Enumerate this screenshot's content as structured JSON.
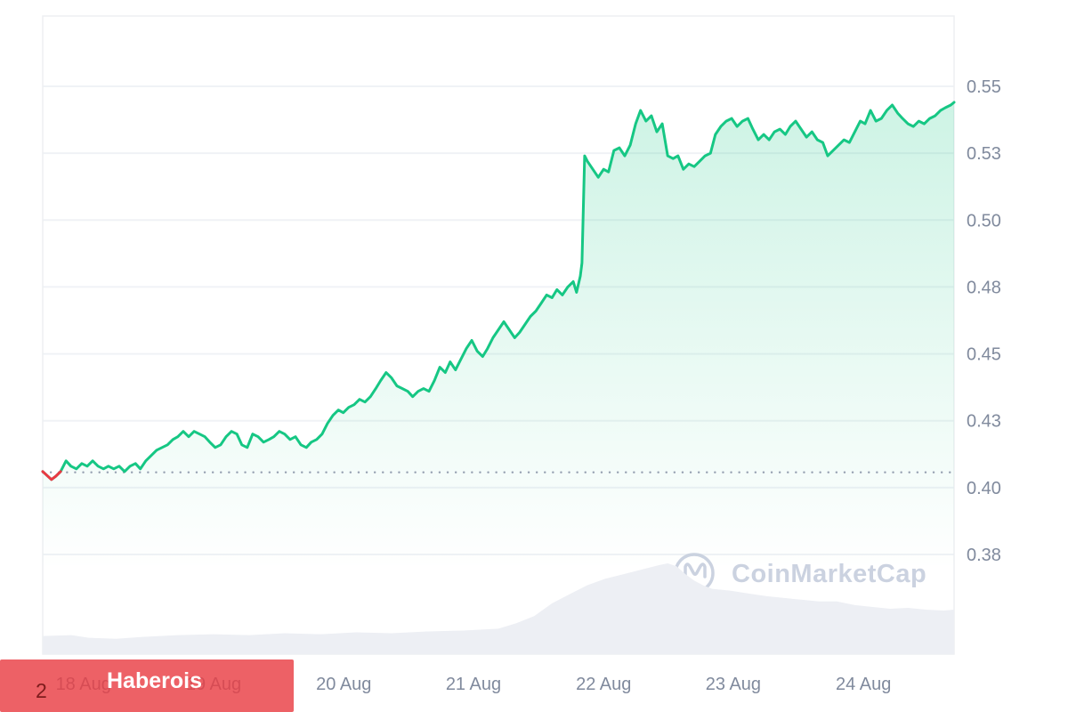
{
  "watermark": {
    "text": "CoinMarketCap",
    "logo_icon": "coinmarketcap-logo",
    "color": "#cbd2e0"
  },
  "overlay": {
    "label": "Haberois",
    "box_color": "rgba(233,62,68,0.82)",
    "label_color": "#ffffff",
    "page_number": "2",
    "page_number_color": "#7d1c1c"
  },
  "chart_data": {
    "type": "line",
    "title": "",
    "xlabel": "",
    "ylabel": "",
    "x_unit": "hours from chart start (7-day window)",
    "y_unit": "price",
    "axis": {
      "x_range_hours": [
        0,
        168
      ],
      "grid": "horizontal-only",
      "y_labels_position": "right"
    },
    "x_ticks": [
      {
        "label": "18 Aug",
        "t": 7.5
      },
      {
        "label": "19 Aug",
        "t": 31.5
      },
      {
        "label": "20 Aug",
        "t": 55.5
      },
      {
        "label": "21 Aug",
        "t": 79.4
      },
      {
        "label": "22 Aug",
        "t": 103.4
      },
      {
        "label": "23 Aug",
        "t": 127.3
      },
      {
        "label": "24 Aug",
        "t": 151.3
      }
    ],
    "y_ticks": [
      {
        "label": "0.55",
        "value": 0.55
      },
      {
        "label": "0.53",
        "value": 0.525
      },
      {
        "label": "0.50",
        "value": 0.5
      },
      {
        "label": "0.48",
        "value": 0.475
      },
      {
        "label": "0.45",
        "value": 0.45
      },
      {
        "label": "0.43",
        "value": 0.425
      },
      {
        "label": "0.40",
        "value": 0.4
      },
      {
        "label": "0.38",
        "value": 0.375
      }
    ],
    "reference_line": 0.4057,
    "series": [
      [
        0,
        0.406
      ],
      [
        0.8,
        0.4045
      ],
      [
        1.6,
        0.403
      ],
      [
        2.4,
        0.4042
      ],
      [
        3.3,
        0.406
      ],
      [
        4.3,
        0.41
      ],
      [
        5.2,
        0.408
      ],
      [
        6.2,
        0.407
      ],
      [
        7.2,
        0.409
      ],
      [
        8.2,
        0.408
      ],
      [
        9.2,
        0.41
      ],
      [
        10.2,
        0.408
      ],
      [
        11.2,
        0.407
      ],
      [
        12.1,
        0.408
      ],
      [
        13.1,
        0.407
      ],
      [
        14.1,
        0.408
      ],
      [
        15.1,
        0.406
      ],
      [
        16.1,
        0.408
      ],
      [
        17.1,
        0.409
      ],
      [
        18,
        0.407
      ],
      [
        19,
        0.41
      ],
      [
        20,
        0.412
      ],
      [
        21,
        0.414
      ],
      [
        22,
        0.415
      ],
      [
        23,
        0.416
      ],
      [
        24,
        0.418
      ],
      [
        24.9,
        0.419
      ],
      [
        25.9,
        0.421
      ],
      [
        26.9,
        0.419
      ],
      [
        27.9,
        0.421
      ],
      [
        28.9,
        0.42
      ],
      [
        29.9,
        0.419
      ],
      [
        30.8,
        0.417
      ],
      [
        31.8,
        0.415
      ],
      [
        32.8,
        0.416
      ],
      [
        33.8,
        0.419
      ],
      [
        34.8,
        0.421
      ],
      [
        35.8,
        0.42
      ],
      [
        36.7,
        0.416
      ],
      [
        37.7,
        0.415
      ],
      [
        38.7,
        0.42
      ],
      [
        39.7,
        0.419
      ],
      [
        40.7,
        0.417
      ],
      [
        41.7,
        0.418
      ],
      [
        42.6,
        0.419
      ],
      [
        43.6,
        0.421
      ],
      [
        44.6,
        0.42
      ],
      [
        45.6,
        0.418
      ],
      [
        46.6,
        0.419
      ],
      [
        47.6,
        0.416
      ],
      [
        48.6,
        0.415
      ],
      [
        49.5,
        0.417
      ],
      [
        50.5,
        0.418
      ],
      [
        51.5,
        0.42
      ],
      [
        52.5,
        0.424
      ],
      [
        53.5,
        0.427
      ],
      [
        54.5,
        0.429
      ],
      [
        55.4,
        0.428
      ],
      [
        56.4,
        0.43
      ],
      [
        57.4,
        0.431
      ],
      [
        58.4,
        0.433
      ],
      [
        59.4,
        0.432
      ],
      [
        60.4,
        0.434
      ],
      [
        61.4,
        0.437
      ],
      [
        62.3,
        0.44
      ],
      [
        63.3,
        0.443
      ],
      [
        64.3,
        0.441
      ],
      [
        65.3,
        0.438
      ],
      [
        66.3,
        0.437
      ],
      [
        67.3,
        0.436
      ],
      [
        68.2,
        0.434
      ],
      [
        69.2,
        0.436
      ],
      [
        70.2,
        0.437
      ],
      [
        71.2,
        0.436
      ],
      [
        72.2,
        0.44
      ],
      [
        73.2,
        0.445
      ],
      [
        74.2,
        0.443
      ],
      [
        75.1,
        0.447
      ],
      [
        76.1,
        0.444
      ],
      [
        77.1,
        0.448
      ],
      [
        78.1,
        0.452
      ],
      [
        79.1,
        0.455
      ],
      [
        80.1,
        0.451
      ],
      [
        81.1,
        0.449
      ],
      [
        82,
        0.452
      ],
      [
        83,
        0.456
      ],
      [
        84,
        0.459
      ],
      [
        85,
        0.462
      ],
      [
        86,
        0.459
      ],
      [
        87,
        0.456
      ],
      [
        87.9,
        0.458
      ],
      [
        88.9,
        0.461
      ],
      [
        89.9,
        0.464
      ],
      [
        90.9,
        0.466
      ],
      [
        91.9,
        0.469
      ],
      [
        92.9,
        0.472
      ],
      [
        93.9,
        0.471
      ],
      [
        94.8,
        0.474
      ],
      [
        95.8,
        0.472
      ],
      [
        96.8,
        0.475
      ],
      [
        97.8,
        0.477
      ],
      [
        98.4,
        0.473
      ],
      [
        99.1,
        0.479
      ],
      [
        99.4,
        0.484
      ],
      [
        99.9,
        0.524
      ],
      [
        100.4,
        0.522
      ],
      [
        101.4,
        0.519
      ],
      [
        102.4,
        0.516
      ],
      [
        103.4,
        0.519
      ],
      [
        104.3,
        0.518
      ],
      [
        105.3,
        0.526
      ],
      [
        106.3,
        0.527
      ],
      [
        107.3,
        0.524
      ],
      [
        108.3,
        0.528
      ],
      [
        109.3,
        0.536
      ],
      [
        110.2,
        0.541
      ],
      [
        111.2,
        0.537
      ],
      [
        112.2,
        0.539
      ],
      [
        113.2,
        0.533
      ],
      [
        114.2,
        0.536
      ],
      [
        115.2,
        0.524
      ],
      [
        116.2,
        0.523
      ],
      [
        117.1,
        0.524
      ],
      [
        118.1,
        0.519
      ],
      [
        119.1,
        0.521
      ],
      [
        120.1,
        0.52
      ],
      [
        121.1,
        0.522
      ],
      [
        122.1,
        0.524
      ],
      [
        123.1,
        0.525
      ],
      [
        124,
        0.532
      ],
      [
        125,
        0.535
      ],
      [
        126,
        0.537
      ],
      [
        127,
        0.538
      ],
      [
        128,
        0.535
      ],
      [
        129,
        0.537
      ],
      [
        130,
        0.538
      ],
      [
        130.9,
        0.534
      ],
      [
        131.9,
        0.53
      ],
      [
        132.9,
        0.532
      ],
      [
        133.9,
        0.53
      ],
      [
        134.9,
        0.533
      ],
      [
        135.9,
        0.534
      ],
      [
        136.9,
        0.532
      ],
      [
        137.8,
        0.535
      ],
      [
        138.8,
        0.537
      ],
      [
        139.8,
        0.534
      ],
      [
        140.8,
        0.531
      ],
      [
        141.8,
        0.533
      ],
      [
        142.8,
        0.53
      ],
      [
        143.8,
        0.529
      ],
      [
        144.7,
        0.524
      ],
      [
        145.7,
        0.526
      ],
      [
        146.7,
        0.528
      ],
      [
        147.7,
        0.53
      ],
      [
        148.7,
        0.529
      ],
      [
        149.7,
        0.533
      ],
      [
        150.7,
        0.537
      ],
      [
        151.6,
        0.536
      ],
      [
        152.6,
        0.541
      ],
      [
        153.6,
        0.537
      ],
      [
        154.6,
        0.538
      ],
      [
        155.6,
        0.541
      ],
      [
        156.6,
        0.543
      ],
      [
        157.6,
        0.54
      ],
      [
        158.5,
        0.538
      ],
      [
        159.5,
        0.536
      ],
      [
        160.5,
        0.535
      ],
      [
        161.5,
        0.537
      ],
      [
        162.5,
        0.536
      ],
      [
        163.5,
        0.538
      ],
      [
        164.5,
        0.539
      ],
      [
        165.5,
        0.541
      ],
      [
        166.4,
        0.542
      ],
      [
        167.4,
        0.543
      ],
      [
        168,
        0.544
      ]
    ],
    "volume_relative": [
      [
        0,
        0.2
      ],
      [
        5.3,
        0.21
      ],
      [
        8.5,
        0.18
      ],
      [
        13.5,
        0.17
      ],
      [
        18.4,
        0.19
      ],
      [
        24.9,
        0.21
      ],
      [
        31.5,
        0.22
      ],
      [
        38.1,
        0.21
      ],
      [
        44.6,
        0.23
      ],
      [
        51.2,
        0.22
      ],
      [
        57.8,
        0.24
      ],
      [
        64.3,
        0.23
      ],
      [
        70.9,
        0.25
      ],
      [
        77.5,
        0.26
      ],
      [
        84,
        0.28
      ],
      [
        87.3,
        0.34
      ],
      [
        90.6,
        0.42
      ],
      [
        93.9,
        0.56
      ],
      [
        97.1,
        0.66
      ],
      [
        100.4,
        0.76
      ],
      [
        103.7,
        0.83
      ],
      [
        107,
        0.88
      ],
      [
        110.3,
        0.93
      ],
      [
        113.6,
        0.98
      ],
      [
        115.2,
        1.0
      ],
      [
        116.8,
        0.97
      ],
      [
        118.5,
        0.88
      ],
      [
        120.1,
        0.81
      ],
      [
        121.7,
        0.76
      ],
      [
        123.4,
        0.72
      ],
      [
        126.7,
        0.7
      ],
      [
        130,
        0.67
      ],
      [
        133.3,
        0.64
      ],
      [
        136.5,
        0.62
      ],
      [
        139.8,
        0.6
      ],
      [
        143.1,
        0.58
      ],
      [
        146.4,
        0.58
      ],
      [
        149.7,
        0.54
      ],
      [
        153,
        0.52
      ],
      [
        156.2,
        0.5
      ],
      [
        159.5,
        0.51
      ],
      [
        162.8,
        0.49
      ],
      [
        166.1,
        0.48
      ],
      [
        168,
        0.49
      ]
    ],
    "legend": "none",
    "colors": {
      "line": "#16c784",
      "line_below_reference": "#ea3943",
      "fill_top": "rgba(22,199,132,0.22)",
      "fill_bottom": "rgba(22,199,132,0)",
      "volume_fill": "#edeff4",
      "grid": "#f0f2f6",
      "border": "#edeff2",
      "axis_label": "#808a9d",
      "reference_dots": "#97a1b2"
    }
  }
}
